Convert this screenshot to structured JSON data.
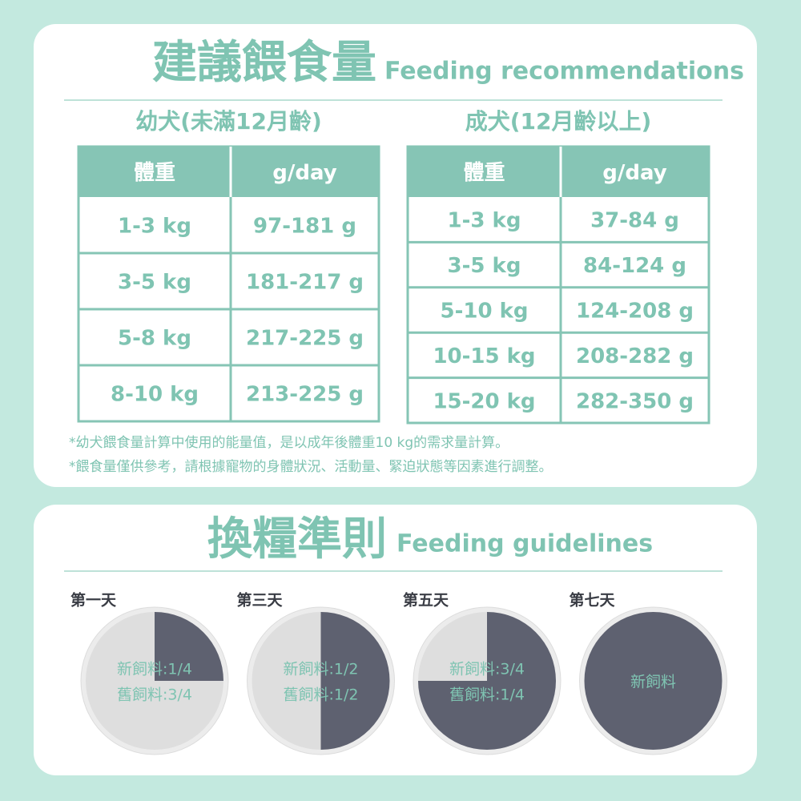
{
  "recommendations": {
    "title": "建議餵食量",
    "title_en": "Feeding recommendations",
    "tables": [
      {
        "caption": "幼犬(未滿12月齡)",
        "header": [
          "體重",
          "g/day"
        ],
        "rows": [
          [
            "1-3 kg",
            "97-181 g"
          ],
          [
            "3-5 kg",
            "181-217 g"
          ],
          [
            "5-8 kg",
            "217-225 g"
          ],
          [
            "8-10 kg",
            "213-225 g"
          ]
        ]
      },
      {
        "caption": "成犬(12月齡以上)",
        "header": [
          "體重",
          "g/day"
        ],
        "rows": [
          [
            "1-3 kg",
            "37-84 g"
          ],
          [
            "3-5 kg",
            "84-124 g"
          ],
          [
            "5-10 kg",
            "124-208 g"
          ],
          [
            "10-15 kg",
            "208-282 g"
          ],
          [
            "15-20 kg",
            "282-350 g"
          ]
        ]
      }
    ],
    "notes": [
      "*幼犬餵食量計算中使用的能量值，是以成年後體重10 kg的需求量計算。",
      "*餵食量僅供參考，請根據寵物的身體狀況、活動量、緊迫狀態等因素進行調整。"
    ]
  },
  "guidelines": {
    "title": "換糧準則",
    "title_en": "Feeding guidelines",
    "days": [
      {
        "label": "第一天",
        "new_fraction": 0.25,
        "lines": [
          "新飼料:1/4",
          "舊飼料:3/4"
        ]
      },
      {
        "label": "第三天",
        "new_fraction": 0.5,
        "lines": [
          "新飼料:1/2",
          "舊飼料:1/2"
        ]
      },
      {
        "label": "第五天",
        "new_fraction": 0.75,
        "lines": [
          "新飼料:3/4",
          "舊飼料:1/4"
        ]
      },
      {
        "label": "第七天",
        "new_fraction": 1,
        "lines": [
          "新飼料"
        ]
      }
    ]
  }
}
